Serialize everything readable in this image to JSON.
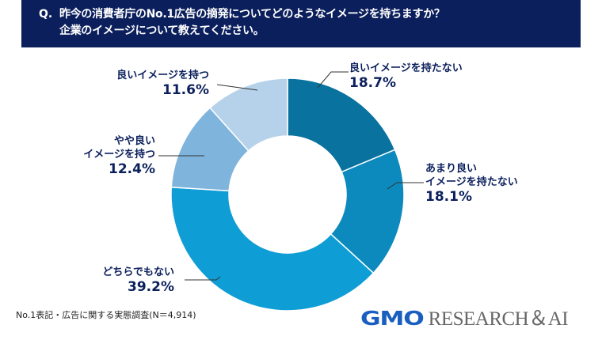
{
  "header": {
    "prefix": "Q.",
    "line1": "昨今の消費者庁のNo.1広告の摘発についてどのようなイメージを持ちますか？",
    "line2": "企業のイメージについて教えてください。",
    "background_color": "#0B1F5C"
  },
  "chart_data": {
    "type": "pie",
    "variant": "donut",
    "title": "昨今の消費者庁のNo.1広告の摘発についてどのようなイメージを持ちますか？企業のイメージについて教えてください。",
    "categories": [
      "良いイメージを持たない",
      "あまり良いイメージを持たない",
      "どちらでもない",
      "やや良いイメージを持つ",
      "良いイメージを持つ"
    ],
    "values": [
      18.7,
      18.1,
      39.2,
      12.4,
      11.6
    ],
    "unit": "%",
    "colors": [
      "#0A729F",
      "#0C89BD",
      "#0F9DD6",
      "#7FB5DD",
      "#B6D2EA"
    ],
    "start_angle": "12 o'clock, clockwise",
    "source": "No.1表記・広告に関する実態調査(N＝4,914)",
    "n": 4914
  },
  "labels": {
    "seg0": {
      "name": "良いイメージを持たない",
      "pct": "18.7%"
    },
    "seg1": {
      "name1": "あまり良い",
      "name2": "イメージを持たない",
      "pct": "18.1%"
    },
    "seg2": {
      "name": "どちらでもない",
      "pct": "39.2%"
    },
    "seg3": {
      "name1": "やや良い",
      "name2": "イメージを持つ",
      "pct": "12.4%"
    },
    "seg4": {
      "name": "良いイメージを持つ",
      "pct": "11.6%"
    }
  },
  "footnote": "No.1表記・広告に関する実態調査(N＝4,914)",
  "logo": {
    "brand": "GMO",
    "rest": "RESEARCH＆AI",
    "brand_color": "#1A5FC0"
  }
}
